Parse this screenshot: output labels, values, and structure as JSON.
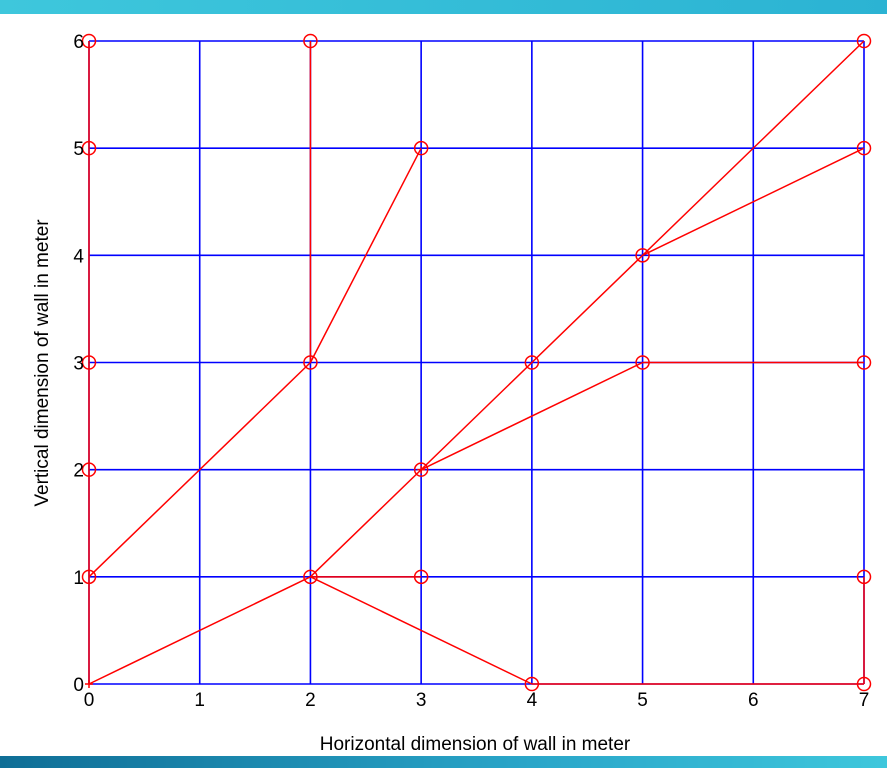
{
  "chart_data": {
    "type": "line",
    "title": "",
    "xlabel": "Horizontal dimension of wall in meter",
    "ylabel": "Vertical dimension of wall in meter",
    "xlim": [
      0,
      7
    ],
    "ylim": [
      0,
      6
    ],
    "xticks": [
      "0",
      "1",
      "2",
      "3",
      "4",
      "5",
      "6",
      "7"
    ],
    "yticks": [
      "0",
      "1",
      "2",
      "3",
      "4",
      "5",
      "6"
    ],
    "grid": true,
    "grid_color": "#0000ff",
    "line_color": "#ff0000",
    "marker": "circle",
    "segments": [
      [
        [
          0,
          0
        ],
        [
          0,
          6
        ]
      ],
      [
        [
          0,
          1
        ],
        [
          2,
          3
        ]
      ],
      [
        [
          2,
          3
        ],
        [
          2,
          6
        ]
      ],
      [
        [
          2,
          3
        ],
        [
          3,
          5
        ]
      ],
      [
        [
          0,
          0
        ],
        [
          2,
          1
        ]
      ],
      [
        [
          2,
          1
        ],
        [
          3,
          1
        ]
      ],
      [
        [
          2,
          1
        ],
        [
          4,
          0
        ]
      ],
      [
        [
          4,
          0
        ],
        [
          7,
          0
        ]
      ],
      [
        [
          7,
          0
        ],
        [
          7,
          1
        ]
      ],
      [
        [
          2,
          1
        ],
        [
          7,
          6
        ]
      ],
      [
        [
          3,
          2
        ],
        [
          5,
          3
        ]
      ],
      [
        [
          5,
          3
        ],
        [
          7,
          3
        ]
      ],
      [
        [
          5,
          4
        ],
        [
          7,
          5
        ]
      ]
    ],
    "points": [
      [
        0,
        6
      ],
      [
        0,
        5
      ],
      [
        0,
        3
      ],
      [
        0,
        2
      ],
      [
        0,
        1
      ],
      [
        2,
        6
      ],
      [
        2,
        3
      ],
      [
        2,
        1
      ],
      [
        3,
        5
      ],
      [
        3,
        2
      ],
      [
        3,
        1
      ],
      [
        4,
        3
      ],
      [
        4,
        0
      ],
      [
        5,
        4
      ],
      [
        5,
        3
      ],
      [
        7,
        6
      ],
      [
        7,
        5
      ],
      [
        7,
        3
      ],
      [
        7,
        1
      ],
      [
        7,
        0
      ]
    ]
  }
}
